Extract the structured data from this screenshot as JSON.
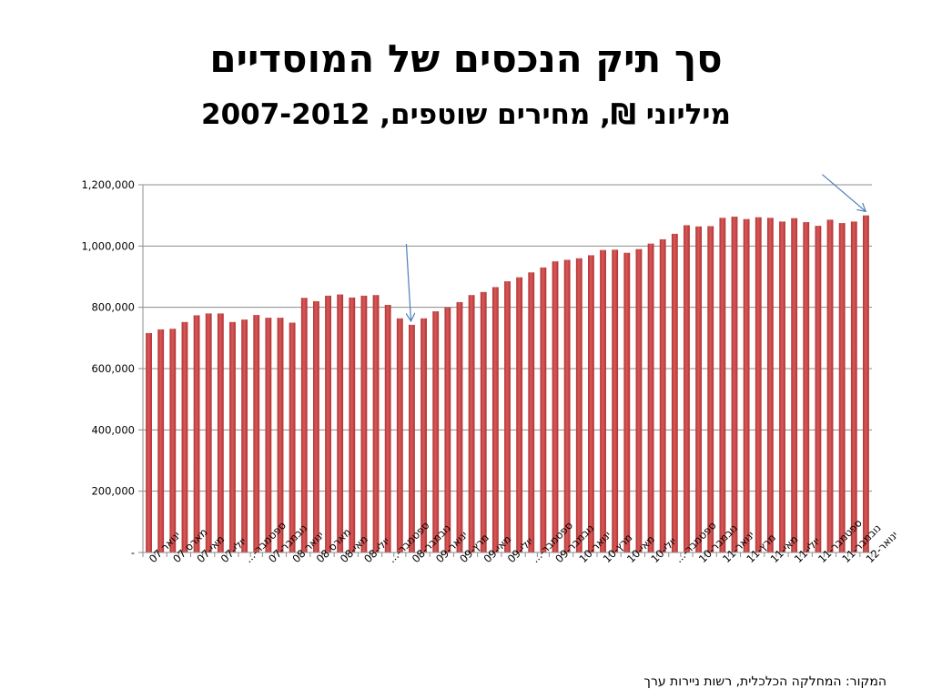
{
  "chart_data": {
    "type": "bar",
    "title": "סך תיק הנכסים של המוסדיים",
    "subtitle": "מיליוני ₪, מחירים שוטפים, 2007-2012",
    "source": "המקור: המחלקה הכלכלית, רשות ניירות ערך",
    "ylim": [
      0,
      1200000
    ],
    "yticks": [
      {
        "value": 0,
        "label": "-"
      },
      {
        "value": 200000,
        "label": "200,000"
      },
      {
        "value": 400000,
        "label": "400,000"
      },
      {
        "value": 600000,
        "label": "600,000"
      },
      {
        "value": 800000,
        "label": "800,000"
      },
      {
        "value": 1000000,
        "label": "1,000,000"
      },
      {
        "value": 1200000,
        "label": "1,200,000"
      }
    ],
    "grid": true,
    "legend": "none",
    "bar_color": "#b13332",
    "bar_highlight": "#d9595a",
    "arrow_color": "#4a7ebb",
    "values": [
      716000,
      728000,
      730000,
      752000,
      774000,
      780000,
      780000,
      752000,
      760000,
      775000,
      766000,
      766000,
      750000,
      831000,
      820000,
      838000,
      842000,
      832000,
      838000,
      840000,
      808000,
      764000,
      743000,
      764000,
      787000,
      800000,
      817000,
      840000,
      850000,
      866000,
      885000,
      898000,
      914000,
      930000,
      950000,
      955000,
      960000,
      970000,
      987000,
      988000,
      978000,
      990000,
      1008000,
      1022000,
      1040000,
      1068000,
      1064000,
      1065000,
      1092000,
      1096000,
      1088000,
      1094000,
      1092000,
      1080000,
      1091000,
      1078000,
      1066000,
      1086000,
      1075000,
      1080000,
      1100000
    ],
    "x_labels": [
      {
        "index": 0,
        "label": "ינואר 07"
      },
      {
        "index": 2,
        "label": "מארס 07"
      },
      {
        "index": 4,
        "label": "מאי-07"
      },
      {
        "index": 6,
        "label": "יולי-07"
      },
      {
        "index": 8,
        "label": "ספטמבר-..."
      },
      {
        "index": 10,
        "label": "נובמבר-07"
      },
      {
        "index": 12,
        "label": "ינואר 08"
      },
      {
        "index": 14,
        "label": "מארס 08"
      },
      {
        "index": 16,
        "label": "מאי-08"
      },
      {
        "index": 18,
        "label": "יולי-08"
      },
      {
        "index": 20,
        "label": "ספטמבר-..."
      },
      {
        "index": 22,
        "label": "נובמבר-08"
      },
      {
        "index": 24,
        "label": "ינואר-09"
      },
      {
        "index": 26,
        "label": "מרץ-09"
      },
      {
        "index": 28,
        "label": "מאי-09"
      },
      {
        "index": 30,
        "label": "יולי-09"
      },
      {
        "index": 32,
        "label": "ספטמבר-..."
      },
      {
        "index": 34,
        "label": "נובמבר-09"
      },
      {
        "index": 36,
        "label": "ינואר-10"
      },
      {
        "index": 38,
        "label": "מרץ-10"
      },
      {
        "index": 40,
        "label": "מאי-10"
      },
      {
        "index": 42,
        "label": "יולי-10"
      },
      {
        "index": 44,
        "label": "ספטמבר-..."
      },
      {
        "index": 46,
        "label": "נובמבר-10"
      },
      {
        "index": 48,
        "label": "ינואר-11"
      },
      {
        "index": 50,
        "label": "מרץ-11"
      },
      {
        "index": 52,
        "label": "מאי-11"
      },
      {
        "index": 54,
        "label": "יולי-11"
      },
      {
        "index": 56,
        "label": "ספטמבר-11"
      },
      {
        "index": 58,
        "label": "נובמבר-11"
      },
      {
        "index": 60,
        "label": "ינואר-12"
      }
    ],
    "arrows": [
      {
        "points_to_index": 22
      },
      {
        "points_to_index": 60
      }
    ]
  }
}
